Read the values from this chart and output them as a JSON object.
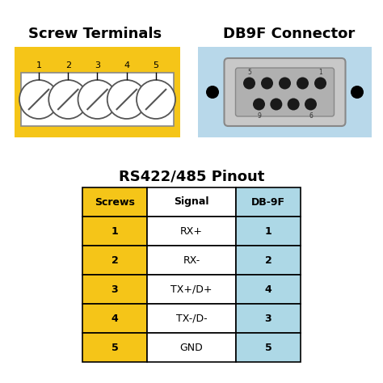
{
  "bg_color": "#ffffff",
  "title_screw": "Screw Terminals",
  "title_db9": "DB9F Connector",
  "title_pinout": "RS422/485 Pinout",
  "screw_bg": "#f5c518",
  "screw_numbers": [
    "1",
    "2",
    "3",
    "4",
    "5"
  ],
  "db9_bg": "#b8d8ea",
  "db9_connector_bg": "#c8c8c8",
  "db9_connector_inner": "#b0b0b0",
  "table_headers": [
    "Screws",
    "Signal",
    "DB-9F"
  ],
  "table_header_colors": [
    "#f5c518",
    "#ffffff",
    "#add8e6"
  ],
  "table_rows": [
    [
      "1",
      "RX+",
      "1"
    ],
    [
      "2",
      "RX-",
      "2"
    ],
    [
      "3",
      "TX+/D+",
      "4"
    ],
    [
      "4",
      "TX-/D-",
      "3"
    ],
    [
      "5",
      "GND",
      "5"
    ]
  ],
  "row_col_colors": [
    [
      "#f5c518",
      "#ffffff",
      "#add8e6"
    ],
    [
      "#f5c518",
      "#ffffff",
      "#add8e6"
    ],
    [
      "#f5c518",
      "#ffffff",
      "#add8e6"
    ],
    [
      "#f5c518",
      "#ffffff",
      "#add8e6"
    ],
    [
      "#f5c518",
      "#ffffff",
      "#add8e6"
    ]
  ]
}
